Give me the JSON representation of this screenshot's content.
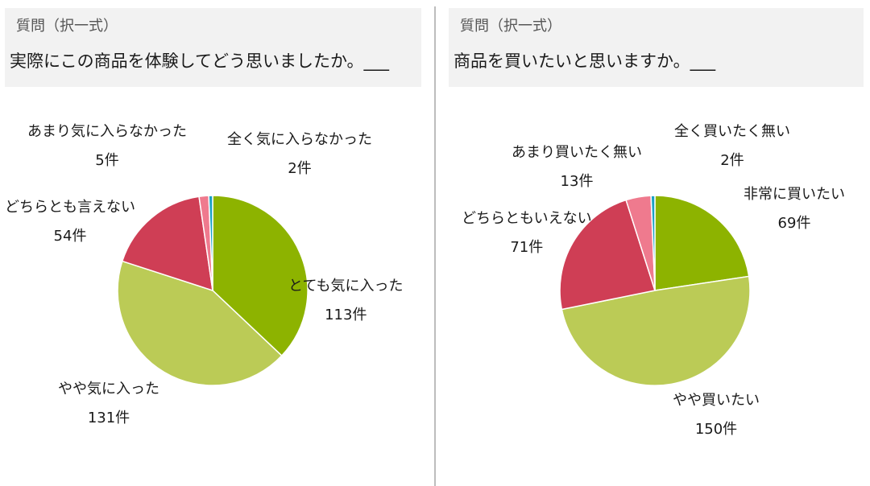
{
  "chart_data": [
    {
      "type": "pie",
      "question_label": "質問（択一式）",
      "question": "実際にこの商品を体験してどう思いましたか。___",
      "unit": "件",
      "categories": [
        "とても気に入った",
        "やや気に入った",
        "どちらとも言えない",
        "あまり気に入らなかった",
        "全く気に入らなかった"
      ],
      "values": [
        113,
        131,
        54,
        5,
        2
      ],
      "colors": [
        "#8db300",
        "#bbcb56",
        "#cf3e55",
        "#ef7a8e",
        "#1ba1c4"
      ]
    },
    {
      "type": "pie",
      "question_label": "質問（択一式）",
      "question": "商品を買いたいと思いますか。___",
      "unit": "件",
      "categories": [
        "非常に買いたい",
        "やや買いたい",
        "どちらともいえない",
        "あまり買いたく無い",
        "全く買いたく無い"
      ],
      "values": [
        69,
        150,
        71,
        13,
        2
      ],
      "colors": [
        "#8db300",
        "#bbcb56",
        "#cf3e55",
        "#ef7a8e",
        "#1ba1c4"
      ]
    }
  ]
}
